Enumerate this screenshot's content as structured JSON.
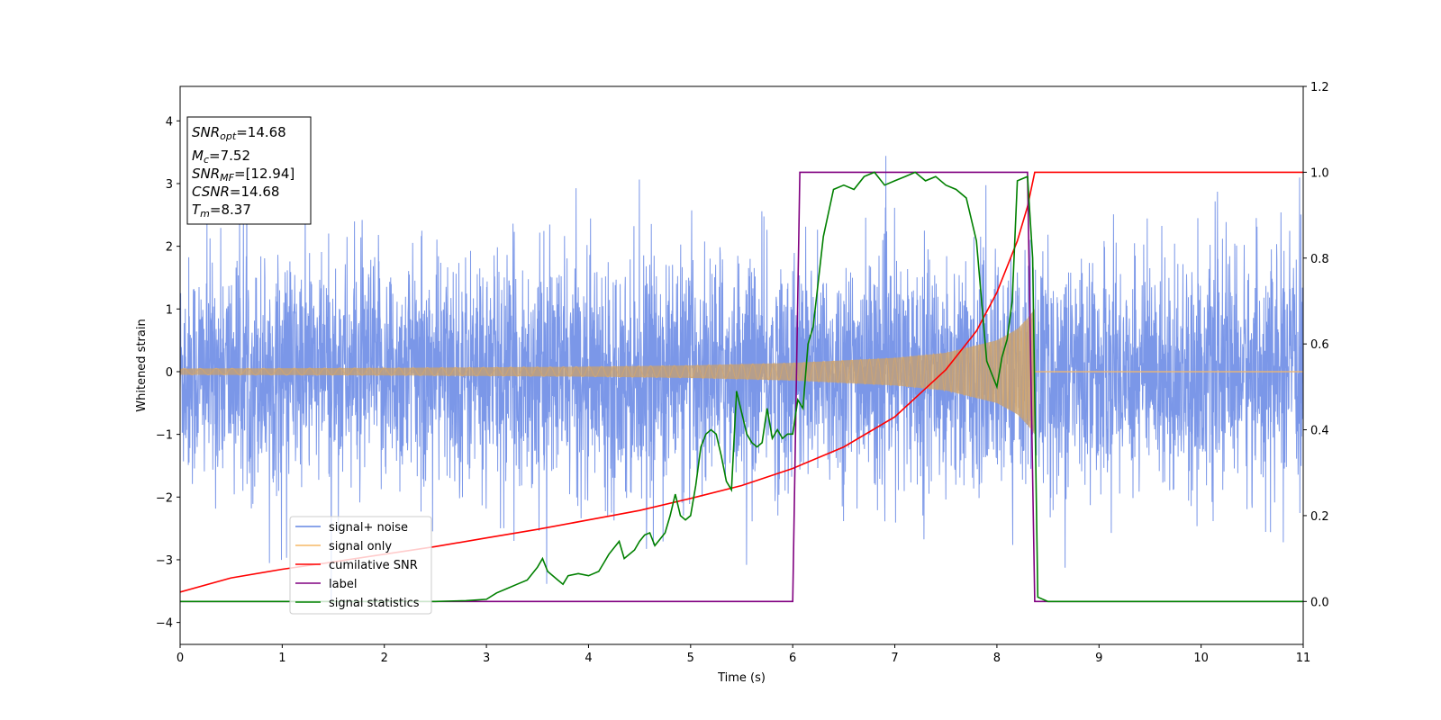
{
  "chart_data": {
    "type": "line",
    "xlabel": "Time (s)",
    "ylabel": "Whitened strain",
    "xlim": [
      0,
      11
    ],
    "ylim_left": [
      -4.35,
      4.55
    ],
    "ylim_right": [
      -0.1,
      1.2
    ],
    "x_ticks": [
      "0",
      "1",
      "2",
      "3",
      "4",
      "5",
      "6",
      "7",
      "8",
      "9",
      "10",
      "11"
    ],
    "y_ticks_left": [
      "−4",
      "−3",
      "−2",
      "−1",
      "0",
      "1",
      "2",
      "3",
      "4"
    ],
    "y_ticks_right": [
      "0.0",
      "0.2",
      "0.4",
      "0.6",
      "0.8",
      "1.0",
      "1.2"
    ],
    "grid": false,
    "legend_position": "lower-left",
    "stats_box": {
      "snr_opt_label": "SNR",
      "snr_opt_sub": "opt",
      "snr_opt_value": "=14.68",
      "mc_label": "M",
      "mc_sub": "c",
      "mc_value": "=7.52",
      "snr_mf_label": "SNR",
      "snr_mf_sub": "MF",
      "snr_mf_value": "=[12.94]",
      "csnr_label": "CSNR",
      "csnr_value": "=14.68",
      "tm_label": "T",
      "tm_sub": "m",
      "tm_value": "=8.37"
    },
    "series": [
      {
        "name": "signal+ noise",
        "color": "#6485e4",
        "axis": "left",
        "description_stats": {
          "noise_sigma": 0.9,
          "merger_time": 8.37
        }
      },
      {
        "name": "signal only",
        "color": "#f5b867",
        "axis": "left",
        "envelope": {
          "x": [
            0,
            2,
            4,
            5,
            6,
            7,
            7.5,
            8,
            8.2,
            8.3,
            8.37
          ],
          "amp": [
            0.05,
            0.06,
            0.08,
            0.1,
            0.14,
            0.22,
            0.3,
            0.5,
            0.68,
            0.85,
            1.0
          ]
        }
      },
      {
        "name": "cumilative SNR",
        "color": "#ff0000",
        "axis": "right",
        "x": [
          0,
          0.5,
          1,
          1.5,
          2,
          2.5,
          3,
          3.5,
          4,
          4.5,
          5,
          5.5,
          6,
          6.5,
          7,
          7.5,
          7.8,
          8,
          8.2,
          8.3,
          8.37,
          8.4,
          11
        ],
        "y": [
          0.022,
          0.055,
          0.075,
          0.092,
          0.11,
          0.128,
          0.148,
          0.168,
          0.19,
          0.212,
          0.24,
          0.27,
          0.31,
          0.36,
          0.43,
          0.54,
          0.63,
          0.72,
          0.84,
          0.92,
          1.0,
          1.0,
          1.0
        ]
      },
      {
        "name": "label",
        "color": "#800080",
        "axis": "right",
        "x": [
          0,
          6.0,
          6.07,
          8.3,
          8.37,
          11
        ],
        "y": [
          0,
          0,
          1,
          1,
          0,
          0
        ]
      },
      {
        "name": "signal statistics",
        "color": "#008000",
        "axis": "right",
        "x": [
          0,
          1,
          2,
          2.5,
          2.8,
          3.0,
          3.1,
          3.2,
          3.3,
          3.4,
          3.5,
          3.55,
          3.6,
          3.7,
          3.75,
          3.8,
          3.9,
          4.0,
          4.1,
          4.15,
          4.2,
          4.3,
          4.35,
          4.45,
          4.5,
          4.55,
          4.6,
          4.65,
          4.75,
          4.8,
          4.85,
          4.9,
          4.95,
          5.0,
          5.05,
          5.1,
          5.15,
          5.2,
          5.25,
          5.3,
          5.35,
          5.4,
          5.45,
          5.5,
          5.55,
          5.6,
          5.65,
          5.7,
          5.75,
          5.8,
          5.85,
          5.9,
          5.95,
          6.0,
          6.05,
          6.1,
          6.15,
          6.2,
          6.3,
          6.4,
          6.5,
          6.6,
          6.7,
          6.8,
          6.9,
          7.0,
          7.1,
          7.2,
          7.3,
          7.4,
          7.5,
          7.6,
          7.7,
          7.8,
          7.9,
          7.95,
          8.0,
          8.05,
          8.1,
          8.15,
          8.2,
          8.25,
          8.3,
          8.35,
          8.4,
          8.5,
          9,
          10,
          11
        ],
        "y": [
          0,
          0,
          0,
          0.0,
          0.002,
          0.005,
          0.02,
          0.03,
          0.04,
          0.05,
          0.08,
          0.1,
          0.07,
          0.05,
          0.04,
          0.06,
          0.065,
          0.06,
          0.07,
          0.09,
          0.11,
          0.14,
          0.1,
          0.12,
          0.14,
          0.155,
          0.16,
          0.13,
          0.16,
          0.2,
          0.25,
          0.2,
          0.19,
          0.2,
          0.27,
          0.36,
          0.39,
          0.4,
          0.39,
          0.34,
          0.28,
          0.26,
          0.49,
          0.44,
          0.39,
          0.37,
          0.36,
          0.37,
          0.45,
          0.38,
          0.4,
          0.38,
          0.39,
          0.39,
          0.47,
          0.45,
          0.6,
          0.64,
          0.85,
          0.96,
          0.97,
          0.96,
          0.99,
          1.0,
          0.97,
          0.98,
          0.99,
          1.0,
          0.98,
          0.99,
          0.97,
          0.96,
          0.94,
          0.84,
          0.56,
          0.53,
          0.5,
          0.57,
          0.61,
          0.7,
          0.98,
          0.985,
          0.99,
          0.8,
          0.01,
          0,
          0,
          0,
          0
        ]
      }
    ]
  }
}
